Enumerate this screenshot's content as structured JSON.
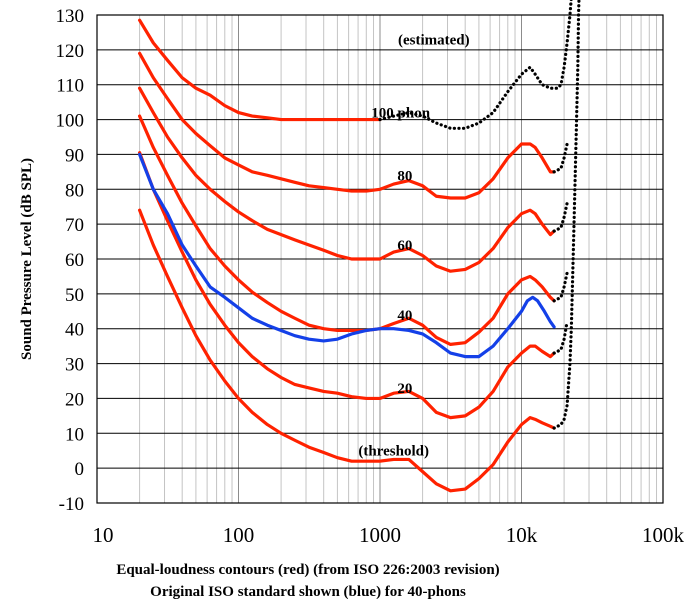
{
  "chart_data": {
    "type": "line",
    "x_scale": "log",
    "xlim": [
      10,
      100000
    ],
    "ylim": [
      -10,
      130
    ],
    "grid": true,
    "ylabel": "Sound Pressure Level (dB SPL)",
    "caption_line1": "Equal-loudness contours (red) (from ISO 226:2003 revision)",
    "caption_line2": "Original ISO standard shown (blue) for 40-phons",
    "y_ticks": [
      -10,
      0,
      10,
      20,
      30,
      40,
      50,
      60,
      70,
      80,
      90,
      100,
      110,
      120,
      130
    ],
    "x_ticks": [
      {
        "value": 10,
        "label": "10"
      },
      {
        "value": 100,
        "label": "100"
      },
      {
        "value": 1000,
        "label": "1000"
      },
      {
        "value": 10000,
        "label": "10k"
      },
      {
        "value": 100000,
        "label": "100k"
      }
    ],
    "annotations": [
      {
        "text": "(estimated)",
        "x": 2400,
        "y": 123
      },
      {
        "text": "100 phon",
        "x": 1400,
        "y": 102
      },
      {
        "text": "80",
        "x": 1500,
        "y": 84
      },
      {
        "text": "60",
        "x": 1500,
        "y": 64
      },
      {
        "text": "40",
        "x": 1500,
        "y": 44
      },
      {
        "text": "20",
        "x": 1500,
        "y": 23
      },
      {
        "text": "(threshold)",
        "x": 1250,
        "y": 5
      }
    ],
    "series": [
      {
        "color": "#ff2200",
        "style": "solid",
        "points": [
          [
            20,
            128.5
          ],
          [
            25,
            122
          ],
          [
            31.5,
            117
          ],
          [
            40,
            112
          ],
          [
            50,
            109
          ],
          [
            63,
            107
          ],
          [
            80,
            104
          ],
          [
            100,
            102
          ],
          [
            125,
            101
          ],
          [
            160,
            100.5
          ],
          [
            200,
            100
          ],
          [
            250,
            100
          ],
          [
            315,
            100
          ],
          [
            400,
            100
          ],
          [
            500,
            100
          ],
          [
            630,
            100
          ],
          [
            800,
            100
          ],
          [
            1000,
            100
          ]
        ]
      },
      {
        "color": "#ff2200",
        "style": "dotted",
        "points": [
          [
            1000,
            100
          ],
          [
            1250,
            101
          ],
          [
            1600,
            102
          ],
          [
            2000,
            101
          ],
          [
            2500,
            99
          ],
          [
            3150,
            97.5
          ],
          [
            4000,
            97.5
          ],
          [
            5000,
            99
          ],
          [
            6300,
            102
          ],
          [
            8000,
            108
          ],
          [
            10000,
            113
          ],
          [
            11500,
            115
          ],
          [
            12500,
            113
          ],
          [
            14000,
            110
          ],
          [
            16000,
            109
          ],
          [
            18000,
            109
          ],
          [
            19000,
            110
          ],
          [
            20000,
            115
          ],
          [
            21000,
            122
          ],
          [
            22000,
            130
          ],
          [
            22500,
            135
          ]
        ]
      },
      {
        "color": "#ff2200",
        "style": "solid",
        "points": [
          [
            20,
            119
          ],
          [
            25,
            112
          ],
          [
            31.5,
            106
          ],
          [
            40,
            100
          ],
          [
            50,
            96
          ],
          [
            63,
            92.5
          ],
          [
            80,
            89
          ],
          [
            100,
            87
          ],
          [
            125,
            85
          ],
          [
            160,
            84
          ],
          [
            200,
            83
          ],
          [
            250,
            82
          ],
          [
            315,
            81
          ],
          [
            400,
            80.5
          ],
          [
            500,
            80
          ],
          [
            630,
            79.5
          ],
          [
            800,
            79.5
          ],
          [
            1000,
            80
          ],
          [
            1250,
            81.5
          ],
          [
            1600,
            82.5
          ],
          [
            2000,
            81
          ],
          [
            2500,
            78
          ],
          [
            3150,
            77.5
          ],
          [
            4000,
            77.5
          ],
          [
            5000,
            79
          ],
          [
            6300,
            83
          ],
          [
            8000,
            89
          ],
          [
            10000,
            93
          ],
          [
            11500,
            93
          ],
          [
            12500,
            92
          ],
          [
            14000,
            89
          ],
          [
            16000,
            85
          ],
          [
            17000,
            85
          ]
        ]
      },
      {
        "color": "#ff2200",
        "style": "dotted",
        "points": [
          [
            17000,
            85
          ],
          [
            19000,
            86
          ],
          [
            20000,
            89
          ],
          [
            21000,
            93
          ]
        ]
      },
      {
        "color": "#ff2200",
        "style": "solid",
        "points": [
          [
            20,
            109
          ],
          [
            25,
            102
          ],
          [
            31.5,
            95
          ],
          [
            40,
            89
          ],
          [
            50,
            84
          ],
          [
            63,
            80
          ],
          [
            80,
            76.5
          ],
          [
            100,
            73.5
          ],
          [
            125,
            71
          ],
          [
            160,
            68.5
          ],
          [
            200,
            67
          ],
          [
            250,
            65.5
          ],
          [
            315,
            64
          ],
          [
            400,
            62.5
          ],
          [
            500,
            61
          ],
          [
            630,
            60
          ],
          [
            800,
            60
          ],
          [
            1000,
            60
          ],
          [
            1250,
            62
          ],
          [
            1600,
            63
          ],
          [
            2000,
            61
          ],
          [
            2500,
            58
          ],
          [
            3150,
            56.5
          ],
          [
            4000,
            57
          ],
          [
            5000,
            59
          ],
          [
            6300,
            63
          ],
          [
            8000,
            69
          ],
          [
            10000,
            73
          ],
          [
            11500,
            74
          ],
          [
            12500,
            73
          ],
          [
            14000,
            70
          ],
          [
            16000,
            67
          ],
          [
            17000,
            68
          ]
        ]
      },
      {
        "color": "#ff2200",
        "style": "dotted",
        "points": [
          [
            17000,
            68
          ],
          [
            19000,
            69
          ],
          [
            20000,
            72
          ],
          [
            21000,
            76
          ]
        ]
      },
      {
        "color": "#ff2200",
        "style": "solid",
        "points": [
          [
            20,
            101
          ],
          [
            25,
            92
          ],
          [
            31.5,
            84
          ],
          [
            40,
            76
          ],
          [
            50,
            69.5
          ],
          [
            63,
            63
          ],
          [
            80,
            58
          ],
          [
            100,
            54
          ],
          [
            125,
            50.5
          ],
          [
            160,
            47.5
          ],
          [
            200,
            45
          ],
          [
            250,
            43
          ],
          [
            315,
            41
          ],
          [
            400,
            40
          ],
          [
            500,
            39.5
          ],
          [
            630,
            39.5
          ],
          [
            800,
            39.5
          ],
          [
            1000,
            40
          ],
          [
            1250,
            41.5
          ],
          [
            1600,
            43
          ],
          [
            2000,
            41
          ],
          [
            2500,
            37.5
          ],
          [
            3150,
            35.5
          ],
          [
            4000,
            36
          ],
          [
            5000,
            39
          ],
          [
            6300,
            43
          ],
          [
            8000,
            50
          ],
          [
            10000,
            54
          ],
          [
            11500,
            55
          ],
          [
            12500,
            54
          ],
          [
            14000,
            52
          ],
          [
            16000,
            49
          ],
          [
            17000,
            48
          ]
        ]
      },
      {
        "color": "#ff2200",
        "style": "dotted",
        "points": [
          [
            17000,
            48
          ],
          [
            19000,
            49
          ],
          [
            20000,
            52
          ],
          [
            21000,
            56
          ]
        ]
      },
      {
        "color": "#ff2200",
        "style": "solid",
        "points": [
          [
            20,
            90.5
          ],
          [
            25,
            80
          ],
          [
            31.5,
            71
          ],
          [
            40,
            62
          ],
          [
            50,
            54
          ],
          [
            63,
            47
          ],
          [
            80,
            41
          ],
          [
            100,
            36
          ],
          [
            125,
            32
          ],
          [
            160,
            28.5
          ],
          [
            200,
            26
          ],
          [
            250,
            24
          ],
          [
            315,
            23
          ],
          [
            400,
            22
          ],
          [
            500,
            21.5
          ],
          [
            630,
            20.5
          ],
          [
            800,
            20
          ],
          [
            1000,
            20
          ],
          [
            1250,
            21.5
          ],
          [
            1600,
            22
          ],
          [
            2000,
            20
          ],
          [
            2500,
            16
          ],
          [
            3150,
            14.5
          ],
          [
            4000,
            15
          ],
          [
            5000,
            17.5
          ],
          [
            6300,
            22
          ],
          [
            8000,
            29
          ],
          [
            10000,
            33
          ],
          [
            11500,
            35
          ],
          [
            12500,
            35
          ],
          [
            14000,
            33.5
          ],
          [
            16000,
            32
          ],
          [
            17000,
            33
          ]
        ]
      },
      {
        "color": "#ff2200",
        "style": "dotted",
        "points": [
          [
            17000,
            33
          ],
          [
            19000,
            34
          ],
          [
            20000,
            37
          ],
          [
            21000,
            42
          ]
        ]
      },
      {
        "color": "#ff2200",
        "style": "solid",
        "points": [
          [
            20,
            74
          ],
          [
            25,
            64
          ],
          [
            31.5,
            55
          ],
          [
            40,
            46
          ],
          [
            50,
            38
          ],
          [
            63,
            31
          ],
          [
            80,
            25
          ],
          [
            100,
            20
          ],
          [
            125,
            16
          ],
          [
            160,
            12.5
          ],
          [
            200,
            10
          ],
          [
            250,
            8
          ],
          [
            315,
            6
          ],
          [
            400,
            4.5
          ],
          [
            500,
            3
          ],
          [
            630,
            2
          ],
          [
            800,
            2
          ],
          [
            1000,
            2
          ],
          [
            1250,
            2.5
          ],
          [
            1600,
            2.5
          ],
          [
            2000,
            -1
          ],
          [
            2500,
            -4.5
          ],
          [
            3150,
            -6.5
          ],
          [
            4000,
            -6
          ],
          [
            5000,
            -3
          ],
          [
            6300,
            1
          ],
          [
            8000,
            7.5
          ],
          [
            10000,
            12.5
          ],
          [
            11500,
            14.5
          ],
          [
            12500,
            14
          ],
          [
            14000,
            13
          ],
          [
            16000,
            12
          ],
          [
            17000,
            11.5
          ]
        ]
      },
      {
        "color": "#ff2200",
        "style": "dotted",
        "points": [
          [
            17000,
            11.5
          ],
          [
            19000,
            12.5
          ],
          [
            20000,
            14
          ],
          [
            21000,
            18
          ],
          [
            22000,
            30
          ],
          [
            22500,
            40
          ],
          [
            23000,
            55
          ],
          [
            23500,
            70
          ],
          [
            24000,
            85
          ],
          [
            24500,
            100
          ],
          [
            25000,
            115
          ],
          [
            25300,
            130
          ],
          [
            25500,
            135
          ]
        ]
      },
      {
        "color": "#1440e8",
        "style": "solid",
        "points": [
          [
            20,
            90
          ],
          [
            25,
            80
          ],
          [
            31.5,
            73
          ],
          [
            40,
            64
          ],
          [
            50,
            58
          ],
          [
            63,
            52
          ],
          [
            80,
            49
          ],
          [
            100,
            46
          ],
          [
            125,
            43
          ],
          [
            160,
            41
          ],
          [
            200,
            39.5
          ],
          [
            250,
            38
          ],
          [
            315,
            37
          ],
          [
            400,
            36.5
          ],
          [
            500,
            37
          ],
          [
            630,
            38.5
          ],
          [
            800,
            39.5
          ],
          [
            1000,
            40
          ],
          [
            1250,
            40
          ],
          [
            1600,
            39.5
          ],
          [
            2000,
            38.5
          ],
          [
            2500,
            36
          ],
          [
            3150,
            33
          ],
          [
            4000,
            32
          ],
          [
            5000,
            32
          ],
          [
            6300,
            35
          ],
          [
            8000,
            40
          ],
          [
            10000,
            45
          ],
          [
            11000,
            48
          ],
          [
            12000,
            49
          ],
          [
            13000,
            48
          ],
          [
            14500,
            45
          ],
          [
            16000,
            42
          ],
          [
            17000,
            40.5
          ]
        ]
      }
    ]
  }
}
